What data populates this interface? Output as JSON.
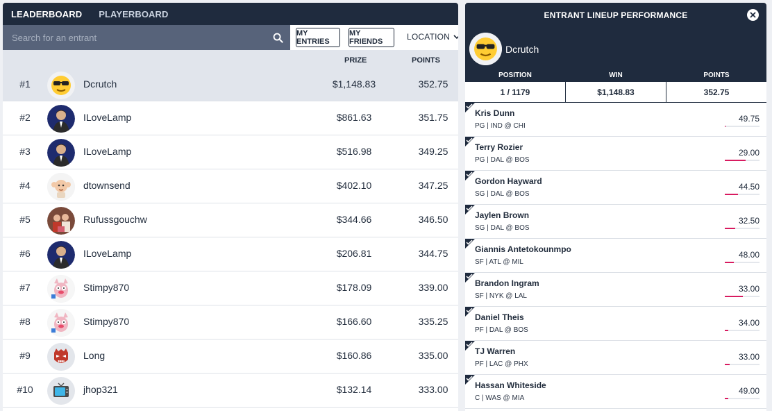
{
  "leaderboard": {
    "tabs": [
      {
        "label": "LEADERBOARD",
        "active": true
      },
      {
        "label": "PLAYERBOARD",
        "active": false
      }
    ],
    "search": {
      "placeholder": "Search for an entrant"
    },
    "buttons": {
      "my_entries": "MY ENTRIES",
      "my_friends": "MY FRIENDS",
      "location": "LOCATION"
    },
    "columns": {
      "prize": "PRIZE",
      "points": "POINTS"
    },
    "rows": [
      {
        "rank": "#1",
        "name": "Dcrutch",
        "prize": "$1,148.83",
        "points": "352.75",
        "avatar": "sunglasses-emoji"
      },
      {
        "rank": "#2",
        "name": "ILoveLamp",
        "prize": "$861.63",
        "points": "351.75",
        "avatar": "man-in-suit"
      },
      {
        "rank": "#3",
        "name": "ILoveLamp",
        "prize": "$516.98",
        "points": "349.25",
        "avatar": "man-in-suit"
      },
      {
        "rank": "#4",
        "name": "dtownsend",
        "prize": "$402.10",
        "points": "347.25",
        "avatar": "baby-cartoon"
      },
      {
        "rank": "#5",
        "name": "Rufussgouchw",
        "prize": "$344.66",
        "points": "346.50",
        "avatar": "family-photo"
      },
      {
        "rank": "#6",
        "name": "ILoveLamp",
        "prize": "$206.81",
        "points": "344.75",
        "avatar": "man-in-suit"
      },
      {
        "rank": "#7",
        "name": "Stimpy870",
        "prize": "$178.09",
        "points": "339.00",
        "avatar": "cartoon-cat"
      },
      {
        "rank": "#8",
        "name": "Stimpy870",
        "prize": "$166.60",
        "points": "335.25",
        "avatar": "cartoon-cat"
      },
      {
        "rank": "#9",
        "name": "Long",
        "prize": "$160.86",
        "points": "335.00",
        "avatar": "red-mask"
      },
      {
        "rank": "#10",
        "name": "jhop321",
        "prize": "$132.14",
        "points": "333.00",
        "avatar": "tv"
      }
    ]
  },
  "lineup": {
    "title": "ENTRANT LINEUP PERFORMANCE",
    "user": {
      "name": "Dcrutch",
      "avatar": "sunglasses-emoji"
    },
    "stats": [
      {
        "label": "POSITION",
        "value": "1 / 1179"
      },
      {
        "label": "WIN",
        "value": "$1,148.83"
      },
      {
        "label": "POINTS",
        "value": "352.75"
      }
    ],
    "players": [
      {
        "name": "Kris Dunn",
        "info": "PG | IND @ CHI",
        "points": "49.75",
        "progress": 0.02
      },
      {
        "name": "Terry Rozier",
        "info": "PG | DAL @ BOS",
        "points": "29.00",
        "progress": 0.6
      },
      {
        "name": "Gordon Hayward",
        "info": "SG | DAL @ BOS",
        "points": "44.50",
        "progress": 0.38
      },
      {
        "name": "Jaylen Brown",
        "info": "SG | DAL @ BOS",
        "points": "32.50",
        "progress": 0.3
      },
      {
        "name": "Giannis Antetokounmpo",
        "info": "SF | ATL @ MIL",
        "points": "48.00",
        "progress": 0.26
      },
      {
        "name": "Brandon Ingram",
        "info": "SF | NYK @ LAL",
        "points": "33.00",
        "progress": 0.52
      },
      {
        "name": "Daniel Theis",
        "info": "PF | DAL @ BOS",
        "points": "34.00",
        "progress": 0.1
      },
      {
        "name": "TJ Warren",
        "info": "PF | LAC @ PHX",
        "points": "33.00",
        "progress": 0.14
      },
      {
        "name": "Hassan Whiteside",
        "info": "C | WAS @ MIA",
        "points": "49.00",
        "progress": 0.1
      }
    ]
  },
  "colors": {
    "navy": "#1f2b3e",
    "search_bg": "#57637a",
    "highlight_row": "#e1e5ec",
    "accent": "#d81b60"
  }
}
